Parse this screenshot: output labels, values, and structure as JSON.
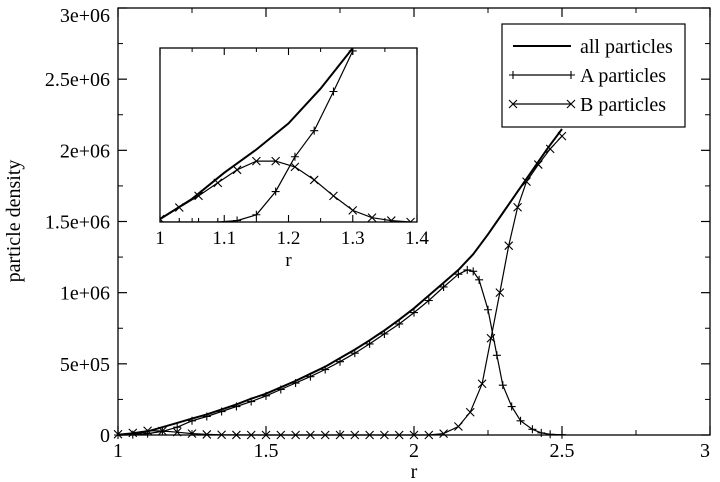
{
  "chart_data": [
    {
      "type": "line",
      "xlabel": "r",
      "ylabel": "particle density",
      "xlim": [
        1,
        3
      ],
      "ylim": [
        0,
        3000000
      ],
      "x_ticks": [
        "1",
        "1.5",
        "2",
        "2.5",
        "3"
      ],
      "x_tick_values": [
        1,
        1.5,
        2,
        2.5,
        3
      ],
      "y_ticks": [
        "0",
        "5e+05",
        "1e+06",
        "1.5e+06",
        "2e+06",
        "2.5e+06",
        "3e+06"
      ],
      "y_tick_values": [
        0,
        500000,
        1000000,
        1500000,
        2000000,
        2500000,
        3000000
      ],
      "legend": {
        "position": "top-right",
        "entries": [
          "all particles",
          "A particles",
          "B particles"
        ]
      },
      "series": [
        {
          "name": "all particles",
          "marker": "none",
          "x": [
            1.0,
            1.05,
            1.1,
            1.15,
            1.2,
            1.25,
            1.3,
            1.35,
            1.4,
            1.45,
            1.5,
            1.55,
            1.6,
            1.65,
            1.7,
            1.75,
            1.8,
            1.85,
            1.9,
            1.95,
            2.0,
            2.05,
            2.1,
            2.15,
            2.2,
            2.25,
            2.3,
            2.35,
            2.4,
            2.45,
            2.5
          ],
          "y": [
            0,
            9000,
            25000,
            55000,
            85000,
            115000,
            145000,
            180000,
            215000,
            255000,
            290000,
            335000,
            380000,
            430000,
            480000,
            540000,
            600000,
            665000,
            735000,
            810000,
            890000,
            980000,
            1070000,
            1160000,
            1270000,
            1410000,
            1560000,
            1710000,
            1860000,
            2010000,
            2150000
          ]
        },
        {
          "name": "A particles",
          "marker": "plus",
          "x": [
            1.0,
            1.05,
            1.1,
            1.15,
            1.2,
            1.25,
            1.3,
            1.35,
            1.4,
            1.45,
            1.5,
            1.55,
            1.6,
            1.65,
            1.7,
            1.75,
            1.8,
            1.85,
            1.9,
            1.95,
            2.0,
            2.05,
            2.1,
            2.15,
            2.18,
            2.2,
            2.22,
            2.25,
            2.28,
            2.3,
            2.33,
            2.36,
            2.4,
            2.43,
            2.46,
            2.5
          ],
          "y": [
            0,
            3000,
            10000,
            25000,
            55000,
            100000,
            130000,
            165000,
            200000,
            235000,
            275000,
            320000,
            365000,
            410000,
            460000,
            515000,
            575000,
            640000,
            710000,
            780000,
            860000,
            945000,
            1040000,
            1130000,
            1160000,
            1150000,
            1090000,
            880000,
            560000,
            350000,
            200000,
            100000,
            40000,
            15000,
            5000,
            2000
          ]
        },
        {
          "name": "B particles",
          "marker": "x",
          "x": [
            1.0,
            1.05,
            1.1,
            1.15,
            1.2,
            1.25,
            1.3,
            1.35,
            1.4,
            1.45,
            1.5,
            1.55,
            1.6,
            1.65,
            1.7,
            1.75,
            1.8,
            1.85,
            1.9,
            1.95,
            2.0,
            2.05,
            2.1,
            2.15,
            2.19,
            2.23,
            2.26,
            2.29,
            2.32,
            2.35,
            2.38,
            2.42,
            2.46,
            2.5
          ],
          "y": [
            5000,
            15000,
            30000,
            28000,
            20000,
            10000,
            4000,
            1500,
            500,
            0,
            0,
            0,
            0,
            0,
            0,
            0,
            0,
            0,
            0,
            0,
            0,
            0,
            10000,
            60000,
            160000,
            360000,
            680000,
            1000000,
            1330000,
            1600000,
            1780000,
            1900000,
            2010000,
            2100000
          ]
        }
      ]
    },
    {
      "type": "line",
      "xlabel": "r",
      "ylabel": "",
      "xlim": [
        1,
        1.4
      ],
      "ylim": [
        1.5,
        2.7
      ],
      "x_ticks": [
        "1",
        "1.1",
        "1.2",
        "1.3",
        "1.4"
      ],
      "x_tick_values": [
        1,
        1.1,
        1.2,
        1.3,
        1.4
      ],
      "series": [
        {
          "name": "all particles",
          "marker": "none",
          "x": [
            1.0,
            1.05,
            1.1,
            1.15,
            1.2,
            1.25,
            1.3
          ],
          "y": [
            1.52,
            1.66,
            1.84,
            2.0,
            2.18,
            2.42,
            2.7
          ]
        },
        {
          "name": "A particles",
          "marker": "plus",
          "x": [
            1.0,
            1.03,
            1.06,
            1.09,
            1.12,
            1.15,
            1.18,
            1.21,
            1.24,
            1.27,
            1.3
          ],
          "y": [
            1.5,
            1.5,
            1.5,
            1.5,
            1.51,
            1.55,
            1.71,
            1.95,
            2.13,
            2.4,
            2.68
          ]
        },
        {
          "name": "B particles",
          "marker": "x",
          "x": [
            1.0,
            1.03,
            1.06,
            1.09,
            1.12,
            1.15,
            1.18,
            1.21,
            1.24,
            1.27,
            1.3,
            1.33,
            1.36,
            1.39
          ],
          "y": [
            1.52,
            1.6,
            1.68,
            1.77,
            1.86,
            1.92,
            1.92,
            1.88,
            1.79,
            1.68,
            1.58,
            1.53,
            1.51,
            1.5
          ]
        }
      ]
    }
  ]
}
